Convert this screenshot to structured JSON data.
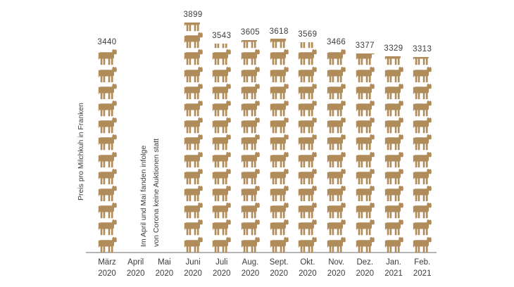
{
  "chart_data": {
    "type": "bar",
    "subtype": "pictogram",
    "icon": "cow",
    "ylabel": "Preis pro Milchkuh in Franken",
    "unit_value_per_cow": 286.67,
    "ylim": [
      0,
      3899
    ],
    "grid": false,
    "categories": [
      "März 2020",
      "April 2020",
      "Mai 2020",
      "Juni 2020",
      "Juli 2020",
      "Aug. 2020",
      "Sept. 2020",
      "Okt. 2020",
      "Nov. 2020",
      "Dez. 2020",
      "Jan. 2021",
      "Feb. 2021"
    ],
    "values": [
      3440,
      null,
      null,
      3899,
      3543,
      3605,
      3618,
      3569,
      3466,
      3377,
      3329,
      3313
    ],
    "months": [
      {
        "label": "März",
        "year": "2020",
        "value": 3440
      },
      {
        "label": "April",
        "year": "2020",
        "value": null
      },
      {
        "label": "Mai",
        "year": "2020",
        "value": null
      },
      {
        "label": "Juni",
        "year": "2020",
        "value": 3899
      },
      {
        "label": "Juli",
        "year": "2020",
        "value": 3543
      },
      {
        "label": "Aug.",
        "year": "2020",
        "value": 3605
      },
      {
        "label": "Sept.",
        "year": "2020",
        "value": 3618
      },
      {
        "label": "Okt.",
        "year": "2020",
        "value": 3569
      },
      {
        "label": "Nov.",
        "year": "2020",
        "value": 3466
      },
      {
        "label": "Dez.",
        "year": "2020",
        "value": 3377
      },
      {
        "label": "Jan.",
        "year": "2021",
        "value": 3329
      },
      {
        "label": "Feb.",
        "year": "2021",
        "value": 3313
      }
    ],
    "annotation": {
      "line1": "Im April und Mai fanden infolge",
      "line2": "von Corona keine Auktionen statt"
    },
    "colors": {
      "cow": "#b18c5b",
      "text": "#3c3c3c",
      "baseline": "#b5b5b5",
      "background": "#ffffff"
    }
  }
}
